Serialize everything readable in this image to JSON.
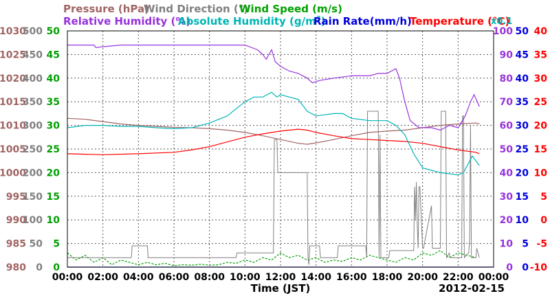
{
  "chart_data": {
    "type": "line",
    "date_label": "2012-02-15",
    "xlabel": "Time (JST)",
    "x_ticks": [
      "00:00",
      "02:00",
      "04:00",
      "06:00",
      "08:00",
      "10:00",
      "12:00",
      "14:00",
      "16:00",
      "18:00",
      "20:00",
      "22:00",
      "00:00"
    ],
    "x_range_hours": [
      0,
      24
    ],
    "grid": true,
    "axes": {
      "pressure": {
        "title": "Pressure (hPa)",
        "color": "#a06464",
        "range": [
          980,
          1030
        ],
        "ticks": [
          "980",
          "985",
          "990",
          "995",
          "1000",
          "1005",
          "1010",
          "1015",
          "1020",
          "1025",
          "1030"
        ]
      },
      "wind_dir": {
        "title": "Wind Direction (°)",
        "color": "#808080",
        "range": [
          0,
          500
        ],
        "ticks": [
          "0",
          "50",
          "100",
          "150",
          "200",
          "250",
          "300",
          "350",
          "400",
          "450",
          "500"
        ]
      },
      "wind_speed": {
        "title": "Wind Speed (m/s)",
        "color": "#00a000",
        "range": [
          0,
          50
        ],
        "ticks": [
          "0",
          "5",
          "10",
          "15",
          "20",
          "25",
          "30",
          "35",
          "40",
          "45",
          "50"
        ]
      },
      "rh": {
        "title": "Relative Humidity (%)",
        "color": "#9632dc",
        "range": [
          0,
          100
        ],
        "ticks": [
          "0",
          "10",
          "20",
          "30",
          "40",
          "50",
          "60",
          "70",
          "80",
          "90",
          "100"
        ]
      },
      "abs_hum": {
        "title": "Absolute Humidity (g/m",
        "title_sup": "3",
        "title_end": ")",
        "scale_note": "x0.1",
        "color": "#00b4b4",
        "range": [
          0,
          50
        ]
      },
      "rain": {
        "title": "Rain Rate(mm/h)",
        "color": "#0000dc",
        "range": [
          0,
          50
        ],
        "ticks": [
          "0",
          "5",
          "10",
          "15",
          "20",
          "25",
          "30",
          "35",
          "40",
          "45",
          "50"
        ]
      },
      "temp": {
        "title": "Temperature (°C)",
        "color": "#ff0000",
        "range": [
          -10,
          40
        ],
        "ticks": [
          "-10",
          "-5",
          "0",
          "5",
          "10",
          "15",
          "20",
          "25",
          "30",
          "35",
          "40"
        ]
      }
    },
    "series": [
      {
        "name": "Relative Humidity",
        "axis": "rh",
        "color": "#9632dc",
        "x": [
          0,
          1.5,
          1.6,
          3,
          6,
          9,
          10,
          10.7,
          11,
          11.2,
          11.5,
          11.7,
          12,
          12.5,
          13,
          13.5,
          13.8,
          14.2,
          15,
          16,
          17,
          17.5,
          18,
          18.5,
          18.7,
          19,
          19.3,
          19.8,
          20.5,
          21,
          21.5,
          22,
          22.4,
          22.7,
          22.9,
          23.2
        ],
        "y": [
          94,
          94,
          93,
          94,
          94,
          94,
          94,
          92,
          90,
          88,
          92,
          87,
          85,
          83,
          82,
          80,
          78,
          79,
          80,
          81,
          81,
          82,
          82,
          84,
          80,
          70,
          62,
          59,
          59,
          58,
          60,
          59,
          64,
          70,
          73,
          68
        ]
      },
      {
        "name": "Absolute Humidity",
        "axis": "abs_hum",
        "color": "#00b4b4",
        "x": [
          0,
          1,
          2,
          3,
          4,
          5,
          6,
          7,
          8,
          9,
          10,
          10.5,
          11,
          11.5,
          11.8,
          12,
          12.5,
          13,
          13.5,
          14,
          15,
          15.5,
          16,
          17,
          18,
          18.5,
          19,
          19.5,
          20,
          20.5,
          21,
          22,
          22.3,
          22.8,
          23.2
        ],
        "y": [
          29.5,
          30,
          30,
          29.8,
          29.8,
          29.5,
          29.3,
          29.5,
          30.5,
          32,
          35,
          36,
          36,
          37,
          36,
          36.5,
          36,
          35.5,
          33,
          32,
          32.5,
          32.5,
          31.5,
          31,
          31,
          30,
          28,
          24,
          21,
          20.5,
          20,
          19.5,
          20,
          23.5,
          21.5
        ]
      },
      {
        "name": "Pressure",
        "axis": "pressure",
        "color": "#a06464",
        "x": [
          0,
          1,
          2,
          3,
          4,
          5,
          6,
          7,
          8,
          9,
          10,
          11,
          12,
          13,
          13.5,
          14,
          15,
          16,
          17,
          18,
          19,
          20,
          21,
          22,
          23,
          23.2
        ],
        "y": [
          1011.5,
          1011.3,
          1010.8,
          1010.3,
          1010,
          1009.8,
          1009.6,
          1009.5,
          1009.3,
          1009,
          1008.5,
          1007.8,
          1007,
          1006.2,
          1006,
          1006.3,
          1007,
          1007.8,
          1008.5,
          1008.8,
          1009,
          1009.5,
          1010,
          1010.3,
          1010.5,
          1010.3
        ]
      },
      {
        "name": "Temperature",
        "axis": "temp",
        "color": "#ff0000",
        "x": [
          0,
          2,
          4,
          6,
          7,
          8,
          9,
          10,
          11,
          12,
          12.5,
          13,
          13.5,
          14,
          15,
          16,
          17,
          18,
          19,
          20,
          21,
          22,
          23,
          23.2
        ],
        "y": [
          14,
          13.8,
          14,
          14.3,
          14.8,
          15.5,
          16.5,
          17.5,
          18.2,
          18.8,
          19,
          19.2,
          19,
          18.5,
          17.8,
          17.2,
          17,
          16.8,
          16.6,
          16.2,
          15.5,
          14.8,
          14.3,
          14
        ]
      },
      {
        "name": "Wind Direction",
        "axis": "wind_dir",
        "color": "#808080",
        "x": [
          0,
          3.6,
          3.65,
          4.5,
          4.55,
          9.5,
          9.55,
          11.6,
          11.65,
          11.8,
          11.85,
          13.5,
          13.55,
          13.6,
          13.65,
          14.2,
          14.25,
          15.2,
          15.25,
          16.8,
          16.85,
          16.9,
          16.95,
          17.5,
          17.55,
          17.6,
          17.65,
          18.1,
          18.15,
          19.5,
          19.55,
          19.6,
          19.65,
          19.7,
          19.75,
          19.8,
          19.85,
          20.0,
          20.05,
          20.5,
          20.55,
          20.6,
          21.0,
          21.05,
          21.3,
          21.35,
          21.5,
          21.55,
          22.2,
          22.25,
          22.3,
          22.35,
          22.6,
          22.65,
          22.7,
          22.75,
          23.0,
          23.05,
          23.2
        ],
        "y": [
          20,
          20,
          45,
          45,
          20,
          20,
          30,
          30,
          270,
          270,
          200,
          200,
          20,
          5,
          45,
          45,
          20,
          20,
          45,
          45,
          20,
          330,
          330,
          330,
          20,
          280,
          20,
          20,
          35,
          35,
          170,
          100,
          180,
          90,
          40,
          170,
          170,
          40,
          40,
          130,
          40,
          40,
          40,
          330,
          330,
          20,
          30,
          20,
          20,
          320,
          320,
          20,
          30,
          60,
          300,
          20,
          20,
          40,
          20
        ]
      },
      {
        "name": "Wind Speed",
        "axis": "wind_speed",
        "color": "#00a000",
        "x": [
          0,
          0.5,
          1,
          1.5,
          2,
          2.5,
          3,
          3.5,
          4,
          4.5,
          5,
          5.5,
          6,
          6.5,
          7,
          7.5,
          8,
          8.5,
          9,
          9.5,
          10,
          10.5,
          11,
          11.5,
          12,
          12.5,
          13,
          13.5,
          14,
          14.5,
          15,
          15.5,
          16,
          16.5,
          17,
          17.5,
          18,
          18.5,
          19,
          19.5,
          20,
          20.5,
          21,
          21.5,
          22,
          22.5,
          23
        ],
        "y": [
          3,
          1.5,
          2.5,
          1,
          2,
          0.5,
          1.5,
          1,
          0.5,
          1,
          0.5,
          0.8,
          0.3,
          0.5,
          0.4,
          0.6,
          0.4,
          0.5,
          1,
          0.8,
          1.5,
          1,
          2,
          1.5,
          3,
          2,
          2.5,
          1.5,
          2,
          1,
          1.5,
          1.2,
          2,
          1.5,
          2.5,
          2,
          1.5,
          1,
          2,
          1.5,
          3,
          2.5,
          3.5,
          2,
          3,
          2.5,
          2
        ]
      },
      {
        "name": "Rain Rate",
        "axis": "rain",
        "color": "#0000dc",
        "x": [
          0,
          24
        ],
        "y": [
          0,
          0
        ]
      }
    ]
  }
}
